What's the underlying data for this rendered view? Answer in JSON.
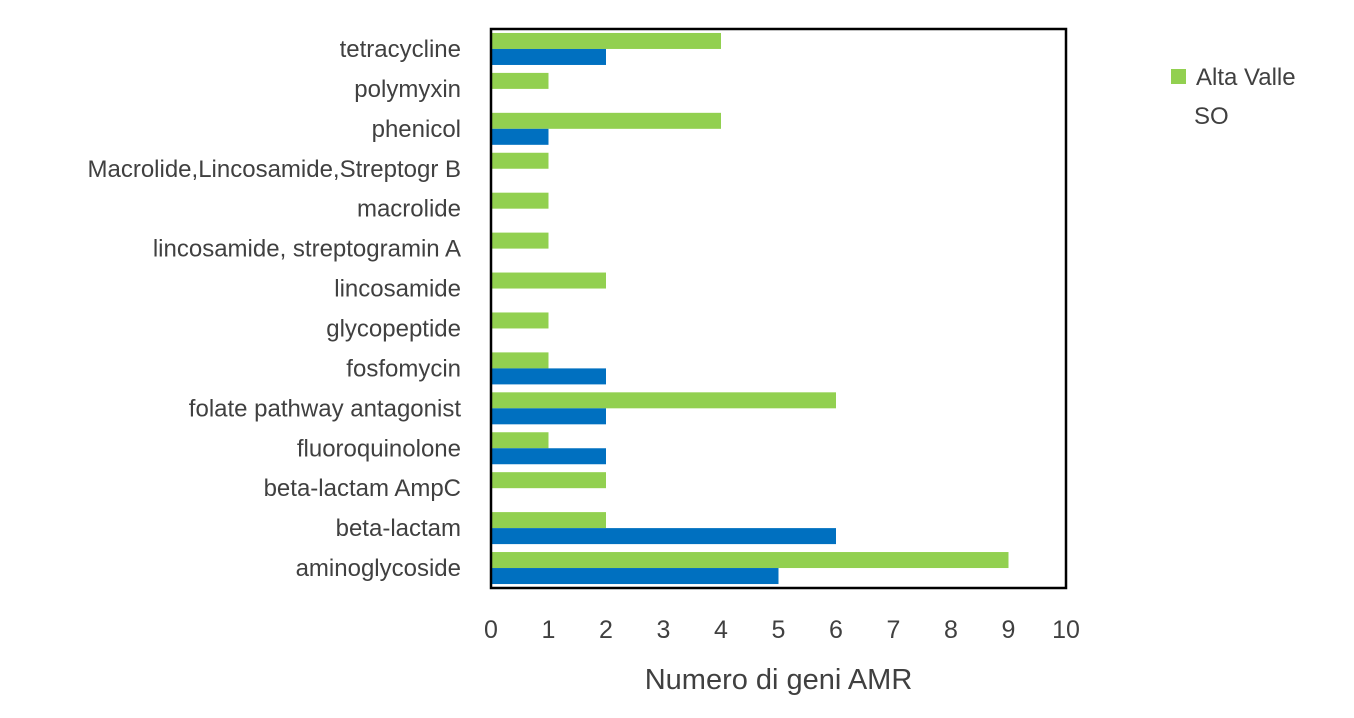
{
  "chart_data": {
    "type": "bar",
    "orientation": "horizontal",
    "title": "",
    "xlabel": "Numero di geni AMR",
    "ylabel": "",
    "xlim": [
      0,
      10
    ],
    "xticks": [
      0,
      1,
      2,
      3,
      4,
      5,
      6,
      7,
      8,
      9,
      10
    ],
    "grid": false,
    "legend_position": "right",
    "categories": [
      "aminoglycoside",
      "beta-lactam",
      "beta-lactam AmpC",
      "fluoroquinolone",
      "folate pathway antagonist",
      "fosfomycin",
      "glycopeptide",
      "lincosamide",
      "lincosamide, streptogramin A",
      "macrolide",
      "Macrolide,Lincosamide,Streptogr B",
      "phenicol",
      "polymyxin",
      "tetracycline"
    ],
    "series": [
      {
        "name": "SO",
        "color": "#0070C0",
        "values": [
          5,
          6,
          0,
          2,
          2,
          2,
          0,
          0,
          0,
          0,
          0,
          1,
          0,
          2
        ]
      },
      {
        "name": "Alta Valle",
        "color": "#92D050",
        "values": [
          9,
          2,
          2,
          1,
          6,
          1,
          1,
          2,
          1,
          1,
          1,
          4,
          1,
          4
        ]
      }
    ],
    "legend": [
      "Alta Valle",
      "SO"
    ]
  }
}
